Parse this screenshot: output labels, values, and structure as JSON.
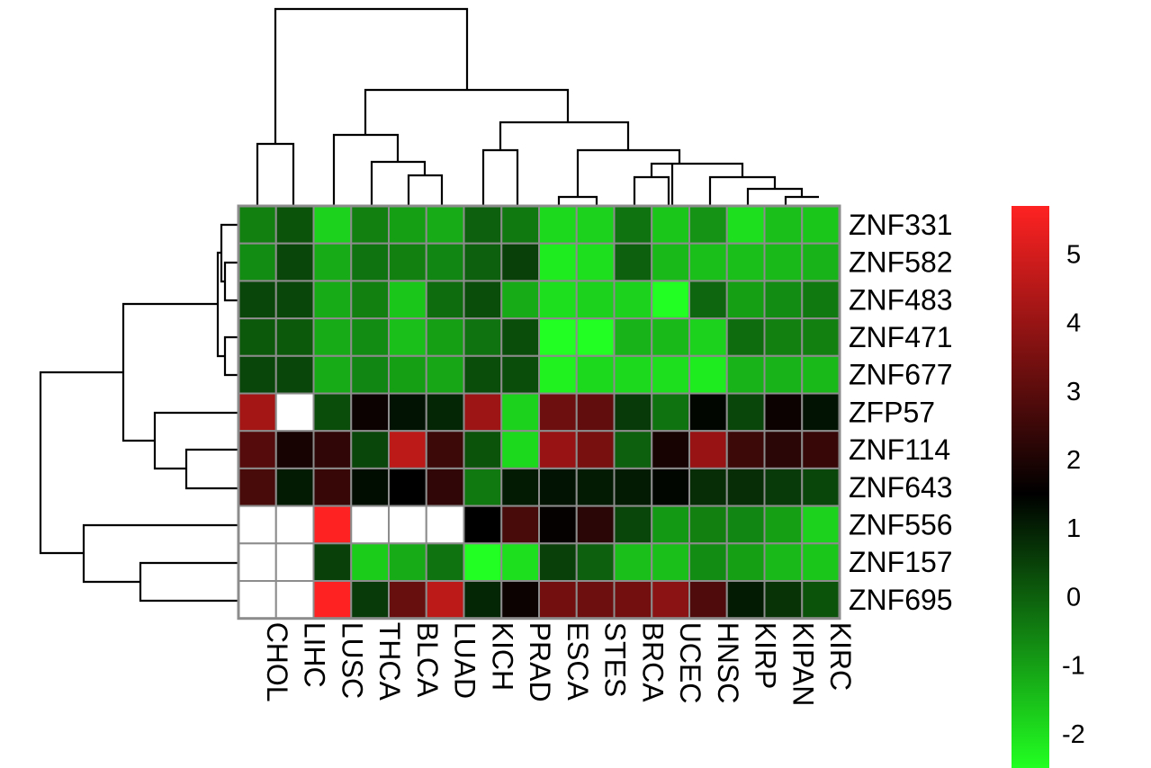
{
  "chart_data": {
    "type": "heatmap",
    "title": "",
    "xlabel": "",
    "ylabel": "",
    "columns": [
      "CHOL",
      "LIHC",
      "LUSC",
      "THCA",
      "BLCA",
      "LUAD",
      "KICH",
      "PRAD",
      "ESCA",
      "STES",
      "BRCA",
      "UCEC",
      "HNSC",
      "KIRP",
      "KIPAN",
      "KIRC"
    ],
    "rows": [
      "ZNF331",
      "ZNF582",
      "ZNF483",
      "ZNF471",
      "ZNF677",
      "ZFP57",
      "ZNF114",
      "ZNF643",
      "ZNF556",
      "ZNF157",
      "ZNF695"
    ],
    "values": [
      [
        -0.5,
        0.2,
        -1.8,
        -0.5,
        -1.0,
        -1.2,
        0.0,
        -0.4,
        -1.9,
        -1.8,
        -0.3,
        -1.6,
        -0.8,
        -2.0,
        -1.5,
        -1.6
      ],
      [
        -0.7,
        0.4,
        -1.2,
        -0.3,
        -0.5,
        -0.6,
        0.0,
        0.5,
        -2.2,
        -2.0,
        0.0,
        -1.4,
        -1.5,
        -1.5,
        -1.4,
        -1.3
      ],
      [
        0.4,
        0.4,
        -1.2,
        -0.5,
        -1.6,
        -0.2,
        0.3,
        -1.2,
        -2.0,
        -1.8,
        -1.8,
        -3.0,
        -0.1,
        -1.0,
        -0.7,
        -0.4
      ],
      [
        0.1,
        0.1,
        -1.2,
        -0.7,
        -1.5,
        -1.0,
        -0.3,
        0.3,
        -3.0,
        -2.7,
        -1.3,
        -1.4,
        -1.8,
        -0.2,
        -0.5,
        -0.5
      ],
      [
        0.4,
        0.4,
        -1.2,
        -0.6,
        -1.0,
        -1.1,
        0.3,
        0.3,
        -2.3,
        -1.9,
        -1.9,
        -2.0,
        -2.2,
        -1.3,
        -1.3,
        -1.4
      ],
      [
        4.2,
        null,
        0.3,
        1.7,
        1.2,
        0.9,
        4.1,
        -1.8,
        3.3,
        3.1,
        0.6,
        -0.3,
        1.4,
        0.4,
        1.7,
        1.2
      ],
      [
        2.9,
        1.9,
        2.3,
        0.4,
        4.6,
        2.5,
        0.2,
        -1.9,
        4.0,
        3.5,
        0.0,
        1.9,
        4.0,
        2.5,
        2.2,
        2.4
      ],
      [
        2.7,
        1.1,
        2.4,
        1.3,
        1.5,
        2.3,
        -0.4,
        1.1,
        1.2,
        1.1,
        1.1,
        1.4,
        0.8,
        0.8,
        0.6,
        0.4
      ],
      [
        null,
        null,
        6.0,
        null,
        null,
        null,
        1.5,
        2.7,
        1.6,
        2.2,
        0.4,
        -0.9,
        -0.5,
        -0.6,
        -1.0,
        -1.8
      ],
      [
        null,
        null,
        0.5,
        -1.7,
        -1.2,
        -0.3,
        -3.1,
        -2.0,
        0.5,
        0.0,
        -1.5,
        -1.5,
        -0.7,
        -1.0,
        -1.4,
        -1.6
      ],
      [
        null,
        null,
        5.8,
        0.6,
        3.2,
        4.6,
        0.9,
        1.7,
        3.4,
        3.3,
        3.4,
        3.8,
        2.8,
        1.1,
        0.7,
        0.2
      ]
    ],
    "missing_color": "#ffffff",
    "color_scale": {
      "low": "#22ff22",
      "mid": "#000000",
      "high": "#ff2222",
      "min": -2.5,
      "mid_value": 1.5,
      "max": 5.7
    },
    "legend": {
      "placement": "right",
      "ticks": [
        5,
        4,
        3,
        2,
        1,
        0,
        -1,
        -2
      ]
    },
    "column_dendrogram": "top",
    "row_dendrogram": "left"
  }
}
